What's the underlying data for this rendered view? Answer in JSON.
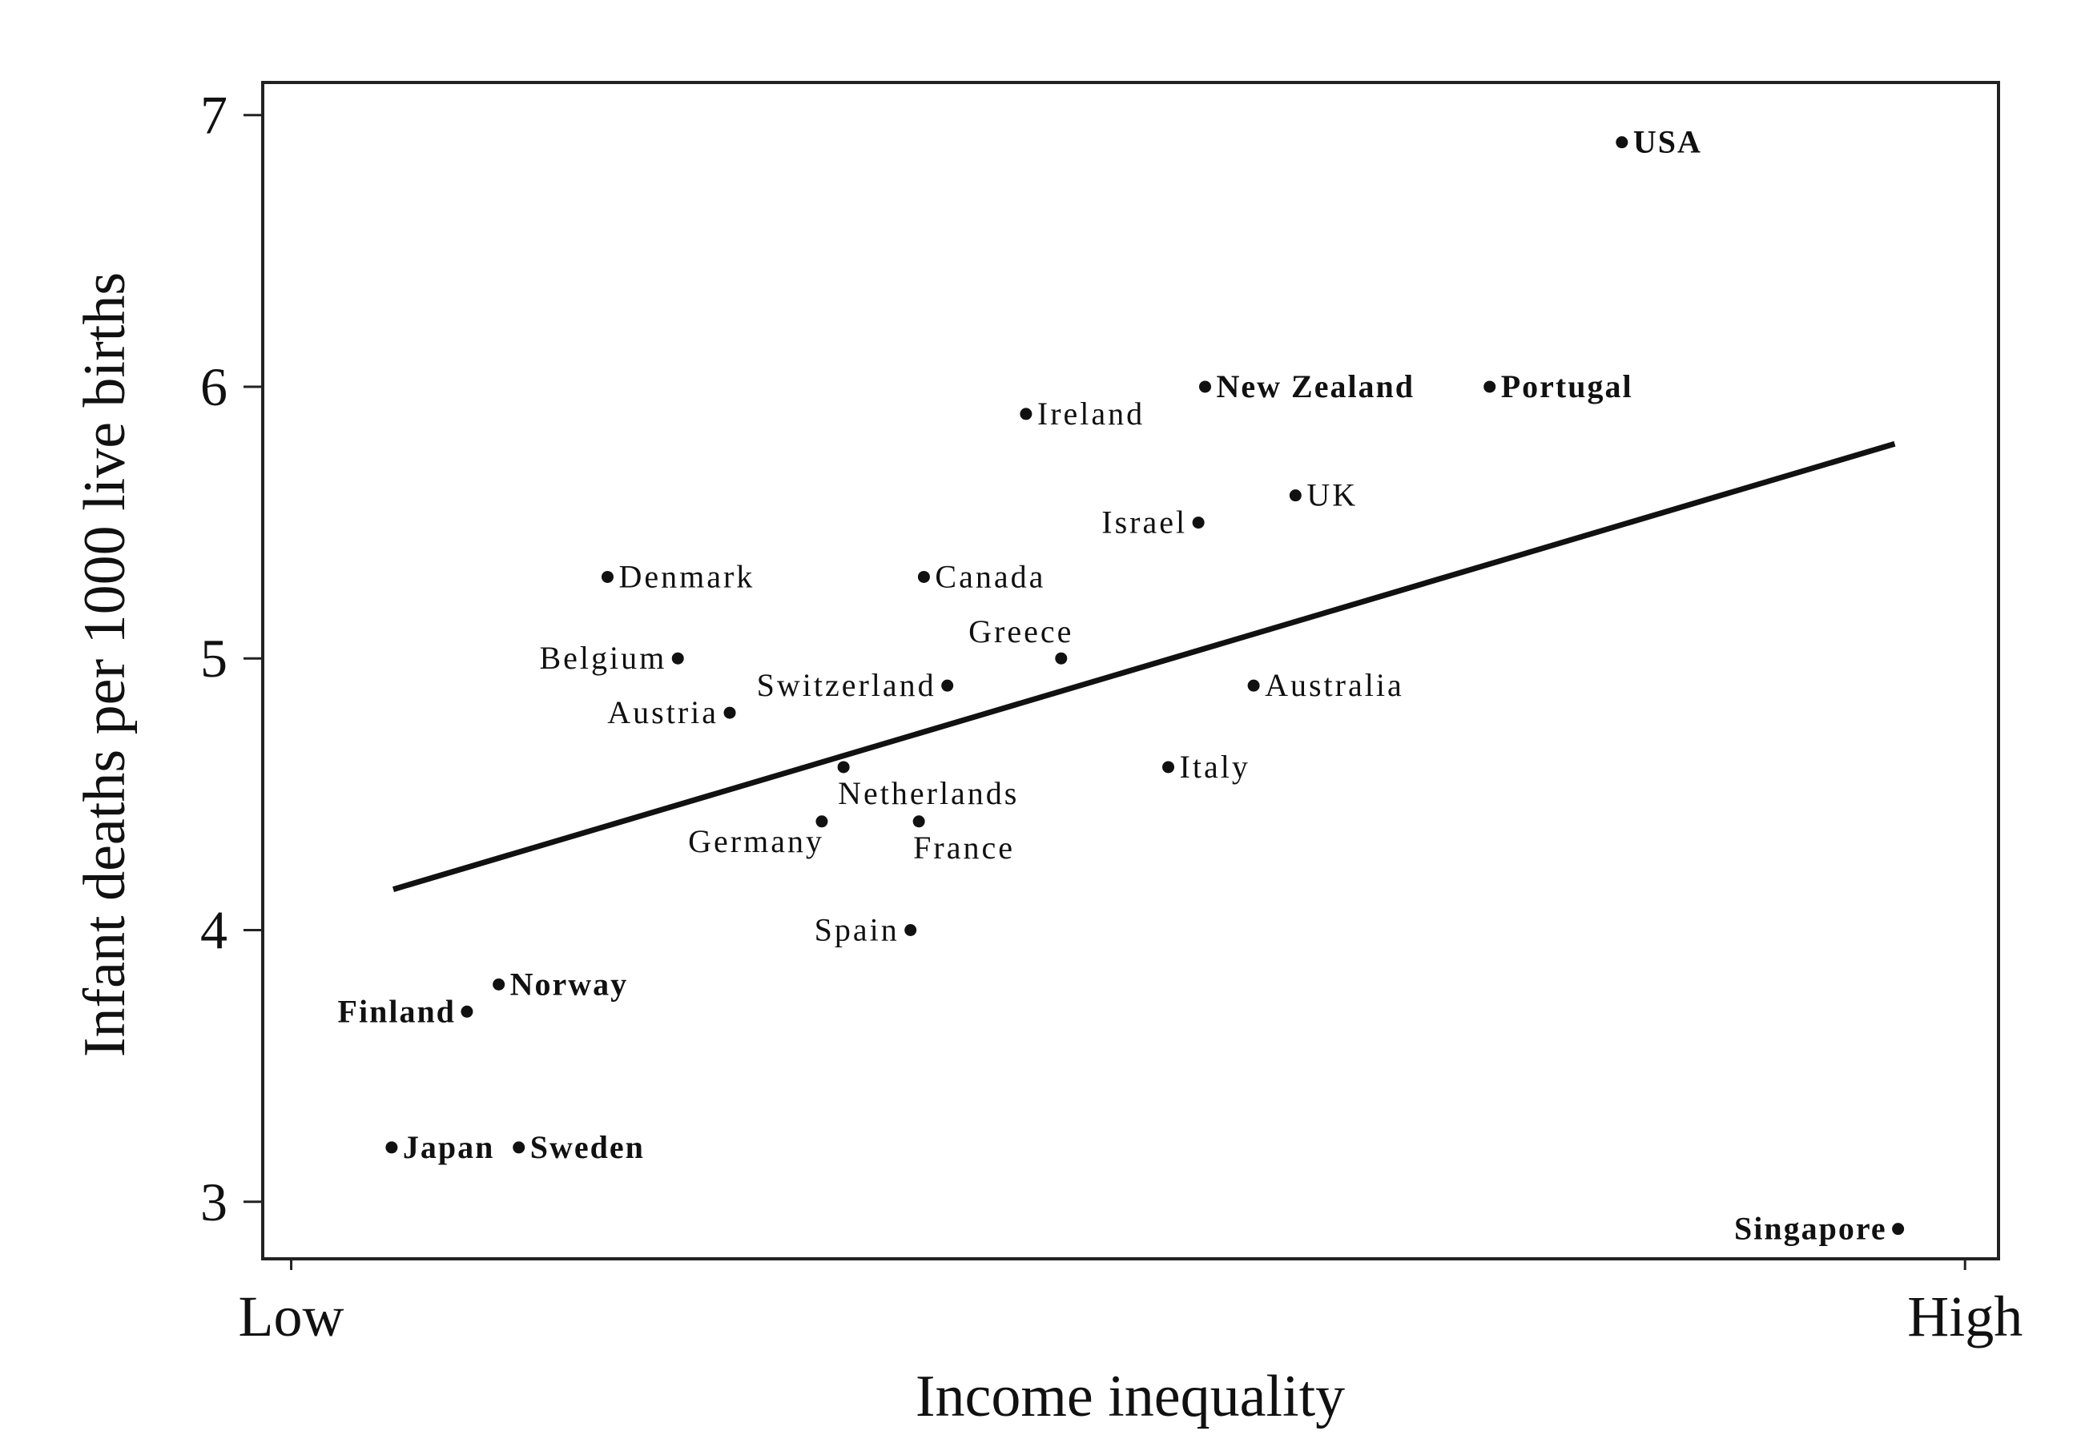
{
  "chart_data": {
    "type": "scatter",
    "title": "",
    "xlabel": "Income inequality",
    "ylabel": "Infant deaths per 1000 live births",
    "x_ticks": [
      {
        "value": 0,
        "label": "Low"
      },
      {
        "value": 1,
        "label": "High"
      }
    ],
    "y_ticks": [
      3,
      4,
      5,
      6,
      7
    ],
    "xlim": [
      -0.017,
      1.02
    ],
    "ylim": [
      2.79,
      7.12
    ],
    "grid": false,
    "legend": "none",
    "colors": {
      "marks": "#111111",
      "frame": "#222222"
    },
    "points": [
      {
        "label": "USA",
        "x": 0.795,
        "y": 6.9,
        "bold": true
      },
      {
        "label": "New Zealand",
        "x": 0.546,
        "y": 6.0,
        "bold": true
      },
      {
        "label": "Portugal",
        "x": 0.716,
        "y": 6.0,
        "bold": true
      },
      {
        "label": "Ireland",
        "x": 0.439,
        "y": 5.9,
        "bold": false
      },
      {
        "label": "UK",
        "x": 0.6,
        "y": 5.6,
        "bold": false
      },
      {
        "label": "Israel",
        "x": 0.542,
        "y": 5.5,
        "bold": false
      },
      {
        "label": "Denmark",
        "x": 0.189,
        "y": 5.3,
        "bold": false
      },
      {
        "label": "Canada",
        "x": 0.378,
        "y": 5.3,
        "bold": false
      },
      {
        "label": "Greece",
        "x": 0.46,
        "y": 5.0,
        "bold": false
      },
      {
        "label": "Belgium",
        "x": 0.231,
        "y": 5.0,
        "bold": false
      },
      {
        "label": "Switzerland",
        "x": 0.392,
        "y": 4.9,
        "bold": false
      },
      {
        "label": "Australia",
        "x": 0.575,
        "y": 4.9,
        "bold": false
      },
      {
        "label": "Austria",
        "x": 0.262,
        "y": 4.8,
        "bold": false
      },
      {
        "label": "Netherlands",
        "x": 0.33,
        "y": 4.6,
        "bold": false
      },
      {
        "label": "Italy",
        "x": 0.524,
        "y": 4.6,
        "bold": false
      },
      {
        "label": "Germany",
        "x": 0.317,
        "y": 4.4,
        "bold": false
      },
      {
        "label": "France",
        "x": 0.375,
        "y": 4.4,
        "bold": false
      },
      {
        "label": "Spain",
        "x": 0.37,
        "y": 4.0,
        "bold": false
      },
      {
        "label": "Norway",
        "x": 0.124,
        "y": 3.8,
        "bold": true
      },
      {
        "label": "Finland",
        "x": 0.105,
        "y": 3.7,
        "bold": true
      },
      {
        "label": "Japan",
        "x": 0.06,
        "y": 3.2,
        "bold": true
      },
      {
        "label": "Sweden",
        "x": 0.136,
        "y": 3.2,
        "bold": true
      },
      {
        "label": "Singapore",
        "x": 0.96,
        "y": 2.9,
        "bold": true
      }
    ],
    "fit_line": {
      "x": [
        0.061,
        0.958
      ],
      "y": [
        4.15,
        5.79
      ]
    }
  }
}
